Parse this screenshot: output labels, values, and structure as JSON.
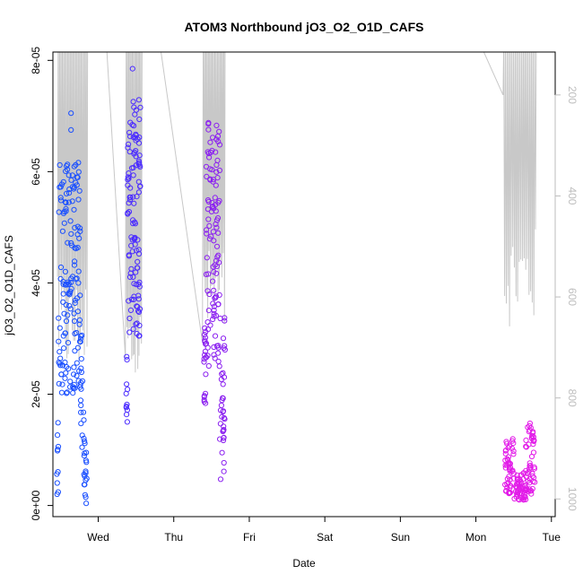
{
  "chart_data": {
    "type": "scatter",
    "title": "ATOM3 Northbound jO3_O2_O1D_CAFS",
    "xlabel": "Date",
    "ylabel": "jO3_O2_O1D_CAFS",
    "x_ticks": [
      {
        "label": "Wed",
        "day": 1
      },
      {
        "label": "Thu",
        "day": 2
      },
      {
        "label": "Fri",
        "day": 3
      },
      {
        "label": "Sat",
        "day": 4
      },
      {
        "label": "Sun",
        "day": 5
      },
      {
        "label": "Mon",
        "day": 6
      },
      {
        "label": "Tue",
        "day": 7
      }
    ],
    "xlim": [
      0.4,
      7.05
    ],
    "ylim": [
      -2e-06,
      8.15e-05
    ],
    "y_ticks": [
      {
        "label": "0e+00",
        "value": 0
      },
      {
        "label": "2e-05",
        "value": 2e-05
      },
      {
        "label": "4e-05",
        "value": 4e-05
      },
      {
        "label": "6e-05",
        "value": 6e-05
      },
      {
        "label": "8e-05",
        "value": 8e-05
      }
    ],
    "y2_ticks": [
      {
        "label": "200",
        "value": 200
      },
      {
        "label": "400",
        "value": 400
      },
      {
        "label": "600",
        "value": 600
      },
      {
        "label": "800",
        "value": 800
      },
      {
        "label": "1000",
        "value": 1000
      }
    ],
    "y2lim": [
      1035,
      115
    ],
    "series": [
      {
        "name": "",
        "color": "#1a4fff",
        "kind": "points",
        "day_range": [
          0.45,
          0.85
        ],
        "y_envelope": [
          5e-07,
          7.05e-05
        ]
      },
      {
        "name": "",
        "color": "#4b2cff",
        "kind": "points",
        "day_range": [
          1.37,
          1.56
        ],
        "y_envelope": [
          1.25e-05,
          7.85e-05
        ]
      },
      {
        "name": "",
        "color": "#8b20f0",
        "kind": "points",
        "day_range": [
          2.4,
          2.68
        ],
        "y_envelope": [
          3e-06,
          7e-05
        ]
      },
      {
        "name": "",
        "color": "#e21be8",
        "kind": "points",
        "day_range": [
          6.38,
          6.78
        ],
        "y_envelope": [
          2e-06,
          1.5e-05
        ]
      }
    ],
    "pressure_trace": {
      "color": "#c8c8c8",
      "kind": "line"
    },
    "grid": false,
    "legend": "none"
  }
}
